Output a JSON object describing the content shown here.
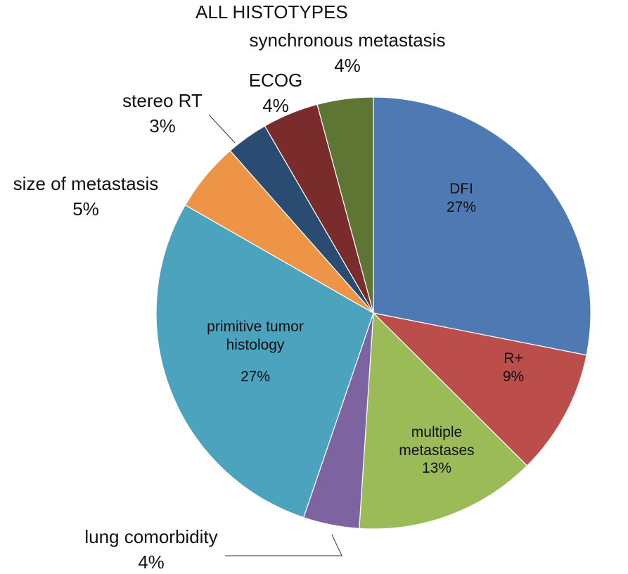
{
  "chart_data": {
    "type": "pie",
    "title": "ALL HISTOTYPES",
    "start_angle_deg": 0,
    "direction": "clockwise",
    "slices": [
      {
        "name": "DFI",
        "label_lines": [
          "DFI"
        ],
        "value_label": "27%",
        "value": 27,
        "color": "#4F79B2"
      },
      {
        "name": "R+",
        "label_lines": [
          "R+"
        ],
        "value_label": "9%",
        "value": 9,
        "color": "#BB4D4B"
      },
      {
        "name": "multiple metastases",
        "label_lines": [
          "multiple",
          "metastases"
        ],
        "value_label": "13%",
        "value": 13,
        "color": "#9BBB59"
      },
      {
        "name": "lung comorbidity",
        "label_lines": [
          "lung comorbidity"
        ],
        "value_label": "4%",
        "value": 4,
        "color": "#7D63A0"
      },
      {
        "name": "primitive tumor histology",
        "label_lines": [
          "primitive tumor",
          "histology"
        ],
        "value_label": "27%",
        "value": 27,
        "color": "#4BA3BE"
      },
      {
        "name": "size of metastasis",
        "label_lines": [
          "size of metastasis"
        ],
        "value_label": "5%",
        "value": 5,
        "color": "#EE9447"
      },
      {
        "name": "stereo RT",
        "label_lines": [
          "stereo RT"
        ],
        "value_label": "3%",
        "value": 3,
        "color": "#2B4C72"
      },
      {
        "name": "ECOG",
        "label_lines": [
          "ECOG"
        ],
        "value_label": "4%",
        "value": 4,
        "color": "#7A2B2B"
      },
      {
        "name": "synchronous metastasis",
        "label_lines": [
          "synchronous metastasis"
        ],
        "value_label": "4%",
        "value": 4,
        "color": "#5E7534"
      }
    ]
  }
}
